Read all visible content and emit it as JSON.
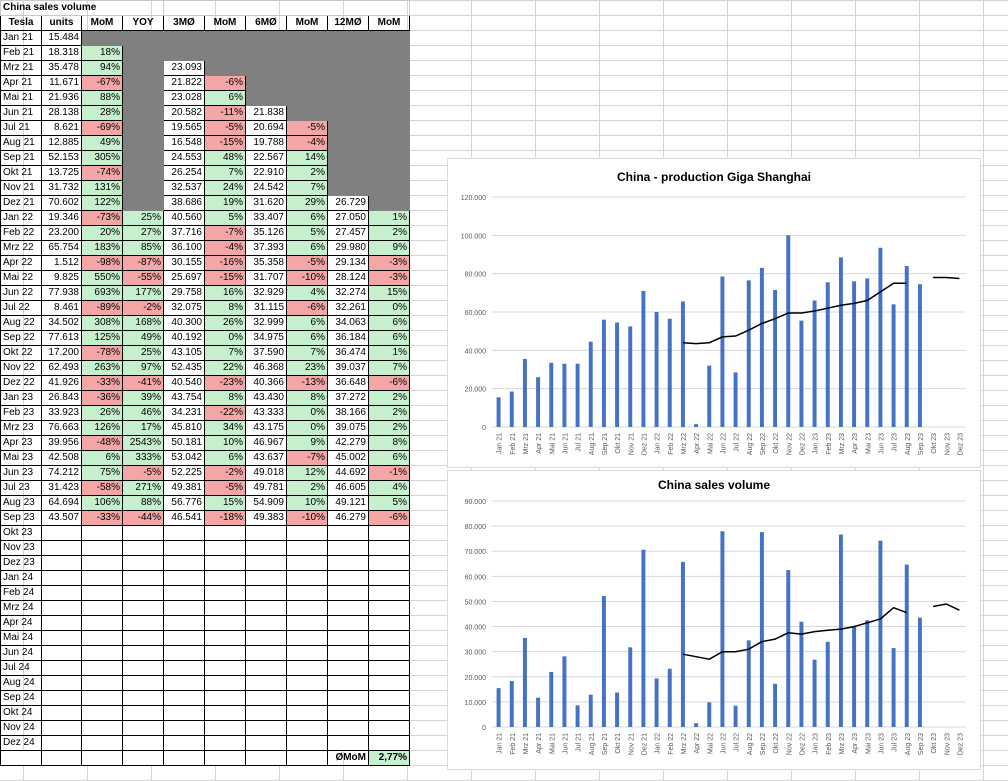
{
  "sheet": {
    "title": "China sales volume",
    "headers": [
      "Tesla",
      "units",
      "MoM",
      "YOY",
      "3MØ",
      "MoM",
      "6MØ",
      "MoM",
      "12MØ",
      "MoM"
    ],
    "rows": [
      [
        "Jan 21",
        "15.484",
        "",
        "",
        "",
        "",
        "",
        "",
        "",
        ""
      ],
      [
        "Feb 21",
        "18.318",
        "18%",
        "",
        "",
        "",
        "",
        "",
        "",
        ""
      ],
      [
        "Mrz 21",
        "35.478",
        "94%",
        "",
        "23.093",
        "",
        "",
        "",
        "",
        ""
      ],
      [
        "Apr 21",
        "11.671",
        "-67%",
        "",
        "21.822",
        "-6%",
        "",
        "",
        "",
        ""
      ],
      [
        "Mai 21",
        "21.936",
        "88%",
        "",
        "23.028",
        "6%",
        "",
        "",
        "",
        ""
      ],
      [
        "Jun 21",
        "28.138",
        "28%",
        "",
        "20.582",
        "-11%",
        "21.838",
        "",
        "",
        ""
      ],
      [
        "Jul 21",
        "8.621",
        "-69%",
        "",
        "19.565",
        "-5%",
        "20.694",
        "-5%",
        "",
        ""
      ],
      [
        "Aug 21",
        "12.885",
        "49%",
        "",
        "16.548",
        "-15%",
        "19.788",
        "-4%",
        "",
        ""
      ],
      [
        "Sep 21",
        "52.153",
        "305%",
        "",
        "24.553",
        "48%",
        "22.567",
        "14%",
        "",
        ""
      ],
      [
        "Okt 21",
        "13.725",
        "-74%",
        "",
        "26.254",
        "7%",
        "22.910",
        "2%",
        "",
        ""
      ],
      [
        "Nov 21",
        "31.732",
        "131%",
        "",
        "32.537",
        "24%",
        "24.542",
        "7%",
        "",
        ""
      ],
      [
        "Dez 21",
        "70.602",
        "122%",
        "",
        "38.686",
        "19%",
        "31.620",
        "29%",
        "26.729",
        ""
      ],
      [
        "Jan 22",
        "19.346",
        "-73%",
        "25%",
        "40.560",
        "5%",
        "33.407",
        "6%",
        "27.050",
        "1%"
      ],
      [
        "Feb 22",
        "23.200",
        "20%",
        "27%",
        "37.716",
        "-7%",
        "35.126",
        "5%",
        "27.457",
        "2%"
      ],
      [
        "Mrz 22",
        "65.754",
        "183%",
        "85%",
        "36.100",
        "-4%",
        "37.393",
        "6%",
        "29.980",
        "9%"
      ],
      [
        "Apr 22",
        "1.512",
        "-98%",
        "-87%",
        "30.155",
        "-16%",
        "35.358",
        "-5%",
        "29.134",
        "-3%"
      ],
      [
        "Mai 22",
        "9.825",
        "550%",
        "-55%",
        "25.697",
        "-15%",
        "31.707",
        "-10%",
        "28.124",
        "-3%"
      ],
      [
        "Jun 22",
        "77.938",
        "693%",
        "177%",
        "29.758",
        "16%",
        "32.929",
        "4%",
        "32.274",
        "15%"
      ],
      [
        "Jul 22",
        "8.461",
        "-89%",
        "-2%",
        "32.075",
        "8%",
        "31.115",
        "-6%",
        "32.261",
        "0%"
      ],
      [
        "Aug 22",
        "34.502",
        "308%",
        "168%",
        "40.300",
        "26%",
        "32.999",
        "6%",
        "34.063",
        "6%"
      ],
      [
        "Sep 22",
        "77.613",
        "125%",
        "49%",
        "40.192",
        "0%",
        "34.975",
        "6%",
        "36.184",
        "6%"
      ],
      [
        "Okt 22",
        "17.200",
        "-78%",
        "25%",
        "43.105",
        "7%",
        "37.590",
        "7%",
        "36.474",
        "1%"
      ],
      [
        "Nov 22",
        "62.493",
        "263%",
        "97%",
        "52.435",
        "22%",
        "46.368",
        "23%",
        "39.037",
        "7%"
      ],
      [
        "Dez 22",
        "41.926",
        "-33%",
        "-41%",
        "40.540",
        "-23%",
        "40.366",
        "-13%",
        "36.648",
        "-6%"
      ],
      [
        "Jan 23",
        "26.843",
        "-36%",
        "39%",
        "43.754",
        "8%",
        "43.430",
        "8%",
        "37.272",
        "2%"
      ],
      [
        "Feb 23",
        "33.923",
        "26%",
        "46%",
        "34.231",
        "-22%",
        "43.333",
        "0%",
        "38.166",
        "2%"
      ],
      [
        "Mrz 23",
        "76.663",
        "126%",
        "17%",
        "45.810",
        "34%",
        "43.175",
        "0%",
        "39.075",
        "2%"
      ],
      [
        "Apr 23",
        "39.956",
        "-48%",
        "2543%",
        "50.181",
        "10%",
        "46.967",
        "9%",
        "42.279",
        "8%"
      ],
      [
        "Mai 23",
        "42.508",
        "6%",
        "333%",
        "53.042",
        "6%",
        "43.637",
        "-7%",
        "45.002",
        "6%"
      ],
      [
        "Jun 23",
        "74.212",
        "75%",
        "-5%",
        "52.225",
        "-2%",
        "49.018",
        "12%",
        "44.692",
        "-1%"
      ],
      [
        "Jul 23",
        "31.423",
        "-58%",
        "271%",
        "49.381",
        "-5%",
        "49.781",
        "2%",
        "46.605",
        "4%"
      ],
      [
        "Aug 23",
        "64.694",
        "106%",
        "88%",
        "56.776",
        "15%",
        "54.909",
        "10%",
        "49.121",
        "5%"
      ],
      [
        "Sep 23",
        "43.507",
        "-33%",
        "-44%",
        "46.541",
        "-18%",
        "49.383",
        "-10%",
        "46.279",
        "-6%"
      ],
      [
        "Okt 23",
        "",
        "",
        "",
        "",
        "",
        "",
        "",
        "",
        ""
      ],
      [
        "Nov 23",
        "",
        "",
        "",
        "",
        "",
        "",
        "",
        "",
        ""
      ],
      [
        "Dez 23",
        "",
        "",
        "",
        "",
        "",
        "",
        "",
        "",
        ""
      ],
      [
        "Jan 24",
        "",
        "",
        "",
        "",
        "",
        "",
        "",
        "",
        ""
      ],
      [
        "Feb 24",
        "",
        "",
        "",
        "",
        "",
        "",
        "",
        "",
        ""
      ],
      [
        "Mrz 24",
        "",
        "",
        "",
        "",
        "",
        "",
        "",
        "",
        ""
      ],
      [
        "Apr 24",
        "",
        "",
        "",
        "",
        "",
        "",
        "",
        "",
        ""
      ],
      [
        "Mai 24",
        "",
        "",
        "",
        "",
        "",
        "",
        "",
        "",
        ""
      ],
      [
        "Jun 24",
        "",
        "",
        "",
        "",
        "",
        "",
        "",
        "",
        ""
      ],
      [
        "Jul 24",
        "",
        "",
        "",
        "",
        "",
        "",
        "",
        "",
        ""
      ],
      [
        "Aug 24",
        "",
        "",
        "",
        "",
        "",
        "",
        "",
        "",
        ""
      ],
      [
        "Sep 24",
        "",
        "",
        "",
        "",
        "",
        "",
        "",
        "",
        ""
      ],
      [
        "Okt 24",
        "",
        "",
        "",
        "",
        "",
        "",
        "",
        "",
        ""
      ],
      [
        "Nov 24",
        "",
        "",
        "",
        "",
        "",
        "",
        "",
        "",
        ""
      ],
      [
        "Dez 24",
        "",
        "",
        "",
        "",
        "",
        "",
        "",
        "",
        ""
      ]
    ],
    "footer": {
      "label": "ØMoM",
      "value": "2,77%"
    }
  },
  "colors": {
    "positive": "#c6efce",
    "negative": "#f4a6a6",
    "grey": "#808080",
    "bar": "#4472c4",
    "line": "#000000"
  },
  "chart_data": [
    {
      "type": "bar",
      "title": "China - production Giga Shanghai",
      "categories": [
        "Jan 21",
        "Feb 21",
        "Mrz 21",
        "Apr 21",
        "Mai 21",
        "Jun 21",
        "Jul 21",
        "Aug 21",
        "Sep 21",
        "Okt 21",
        "Nov 21",
        "Dez 21",
        "Jan 22",
        "Feb 22",
        "Mrz 22",
        "Apr 22",
        "Mai 22",
        "Jun 22",
        "Jul 22",
        "Aug 22",
        "Sep 22",
        "Okt 22",
        "Nov 22",
        "Dez 22",
        "Jan 23",
        "Feb 23",
        "Mrz 23",
        "Apr 23",
        "Mai 23",
        "Jun 23",
        "Jul 23",
        "Aug 23",
        "Sep 23",
        "Okt 23",
        "Nov 23",
        "Dez 23"
      ],
      "values": [
        15500,
        18500,
        35500,
        26000,
        33500,
        33000,
        33000,
        44500,
        56000,
        54500,
        52500,
        71000,
        60000,
        56500,
        65500,
        1500,
        32000,
        78500,
        28500,
        76500,
        83000,
        71500,
        100000,
        55500,
        66000,
        75500,
        88500,
        76000,
        77500,
        93500,
        64000,
        84000,
        74500,
        null,
        null,
        null
      ],
      "trend": [
        null,
        null,
        null,
        null,
        null,
        null,
        null,
        null,
        null,
        null,
        null,
        null,
        null,
        null,
        44000,
        43500,
        44000,
        47000,
        47500,
        50500,
        54000,
        56500,
        59500,
        59500,
        60500,
        62000,
        63500,
        64500,
        66000,
        70500,
        75000,
        75000,
        null,
        78000,
        78000,
        77500
      ],
      "ylim": [
        0,
        120000
      ],
      "yticks": [
        "0",
        "20.000",
        "40.000",
        "60.000",
        "80.000",
        "100.000",
        "120.000"
      ],
      "grid": true
    },
    {
      "type": "bar",
      "title": "China sales volume",
      "categories": [
        "Jan 21",
        "Feb 21",
        "Mrz 21",
        "Apr 21",
        "Mai 21",
        "Jun 21",
        "Jul 21",
        "Aug 21",
        "Sep 21",
        "Okt 21",
        "Nov 21",
        "Dez 21",
        "Jan 22",
        "Feb 22",
        "Mrz 22",
        "Apr 22",
        "Mai 22",
        "Jun 22",
        "Jul 22",
        "Aug 22",
        "Sep 22",
        "Okt 22",
        "Nov 22",
        "Dez 22",
        "Jan 23",
        "Feb 23",
        "Mrz 23",
        "Apr 23",
        "Mai 23",
        "Jun 23",
        "Jul 23",
        "Aug 23",
        "Sep 23",
        "Okt 23",
        "Nov 23",
        "Dez 23"
      ],
      "values": [
        15484,
        18318,
        35478,
        11671,
        21936,
        28138,
        8621,
        12885,
        52153,
        13725,
        31732,
        70602,
        19346,
        23200,
        65754,
        1512,
        9825,
        77938,
        8461,
        34502,
        77613,
        17200,
        62493,
        41926,
        26843,
        33923,
        76663,
        39956,
        42508,
        74212,
        31423,
        64694,
        43507,
        null,
        null,
        null
      ],
      "trend": [
        null,
        null,
        null,
        null,
        null,
        null,
        null,
        null,
        null,
        null,
        null,
        null,
        null,
        null,
        29000,
        28000,
        27000,
        30000,
        30000,
        31000,
        34000,
        35000,
        37500,
        37000,
        38000,
        38500,
        39000,
        40000,
        41500,
        43000,
        47500,
        45500,
        null,
        48000,
        49000,
        46500
      ],
      "ylim": [
        0,
        90000
      ],
      "yticks": [
        "0",
        "10.000",
        "20.000",
        "30.000",
        "40.000",
        "50.000",
        "60.000",
        "70.000",
        "80.000",
        "90.000"
      ],
      "grid": true
    }
  ]
}
